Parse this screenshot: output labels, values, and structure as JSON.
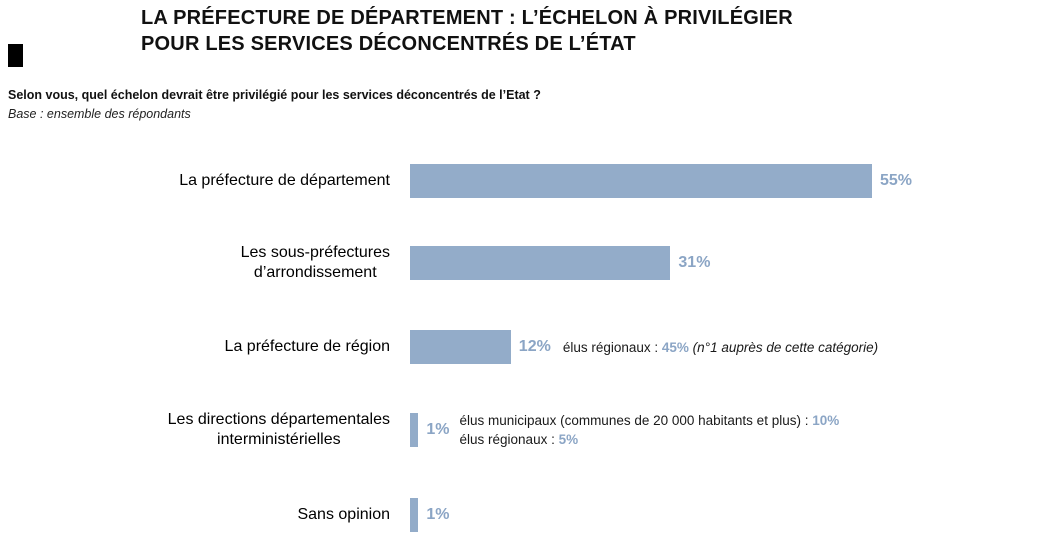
{
  "slide": {
    "title_line1": "LA PRÉFECTURE DE DÉPARTEMENT : L’ÉCHELON À PRIVILÉGIER",
    "title_line2": "POUR LES SERVICES DÉCONCENTRÉS DE L’ÉTAT",
    "question": "Selon vous, quel échelon devrait être privilégié pour les services déconcentrés de l’Etat ?",
    "base": "Base : ensemble des répondants"
  },
  "colors": {
    "bar": "#93ACC9",
    "value_text": "#8BA5C5"
  },
  "bars": [
    {
      "label": "La préfecture de département",
      "value": 55,
      "value_label": "55%"
    },
    {
      "label": "Les sous-préfectures\nd’arrondissement",
      "value": 31,
      "value_label": "31%"
    },
    {
      "label": "La préfecture de région",
      "value": 12,
      "value_label": "12%",
      "note": {
        "prefix": "élus régionaux : ",
        "value": "45%",
        "suffix": " (n°1 auprès de cette catégorie)"
      }
    },
    {
      "label": "Les directions départementales\ninterministérielles",
      "value": 1,
      "value_label": "1%",
      "notes": [
        {
          "prefix": "élus municipaux (communes de 20 000 habitants et plus) : ",
          "value": "10%"
        },
        {
          "prefix": "élus régionaux : ",
          "value": "5%"
        }
      ]
    },
    {
      "label": "Sans opinion",
      "value": 1,
      "value_label": "1%"
    }
  ],
  "chart_data": {
    "type": "bar",
    "orientation": "horizontal",
    "title": "LA PRÉFECTURE DE DÉPARTEMENT : L’ÉCHELON À PRIVILÉGIER POUR LES SERVICES DÉCONCENTRÉS DE L’ÉTAT",
    "subtitle": "Selon vous, quel échelon devrait être privilégié pour les services déconcentrés de l’Etat ?",
    "base": "Base : ensemble des répondants",
    "categories": [
      "La préfecture de département",
      "Les sous-préfectures d’arrondissement",
      "La préfecture de région",
      "Les directions départementales interministérielles",
      "Sans opinion"
    ],
    "values": [
      55,
      31,
      12,
      1,
      1
    ],
    "unit": "%",
    "xlim": [
      0,
      60
    ],
    "grid": false,
    "legend": false,
    "bar_color": "#93ACC9",
    "annotations": [
      "La préfecture de région — élus régionaux : 45% (n°1 auprès de cette catégorie)",
      "Les directions départementales interministérielles — élus municipaux (communes de 20 000 habitants et plus) : 10% ; élus régionaux : 5%"
    ]
  }
}
